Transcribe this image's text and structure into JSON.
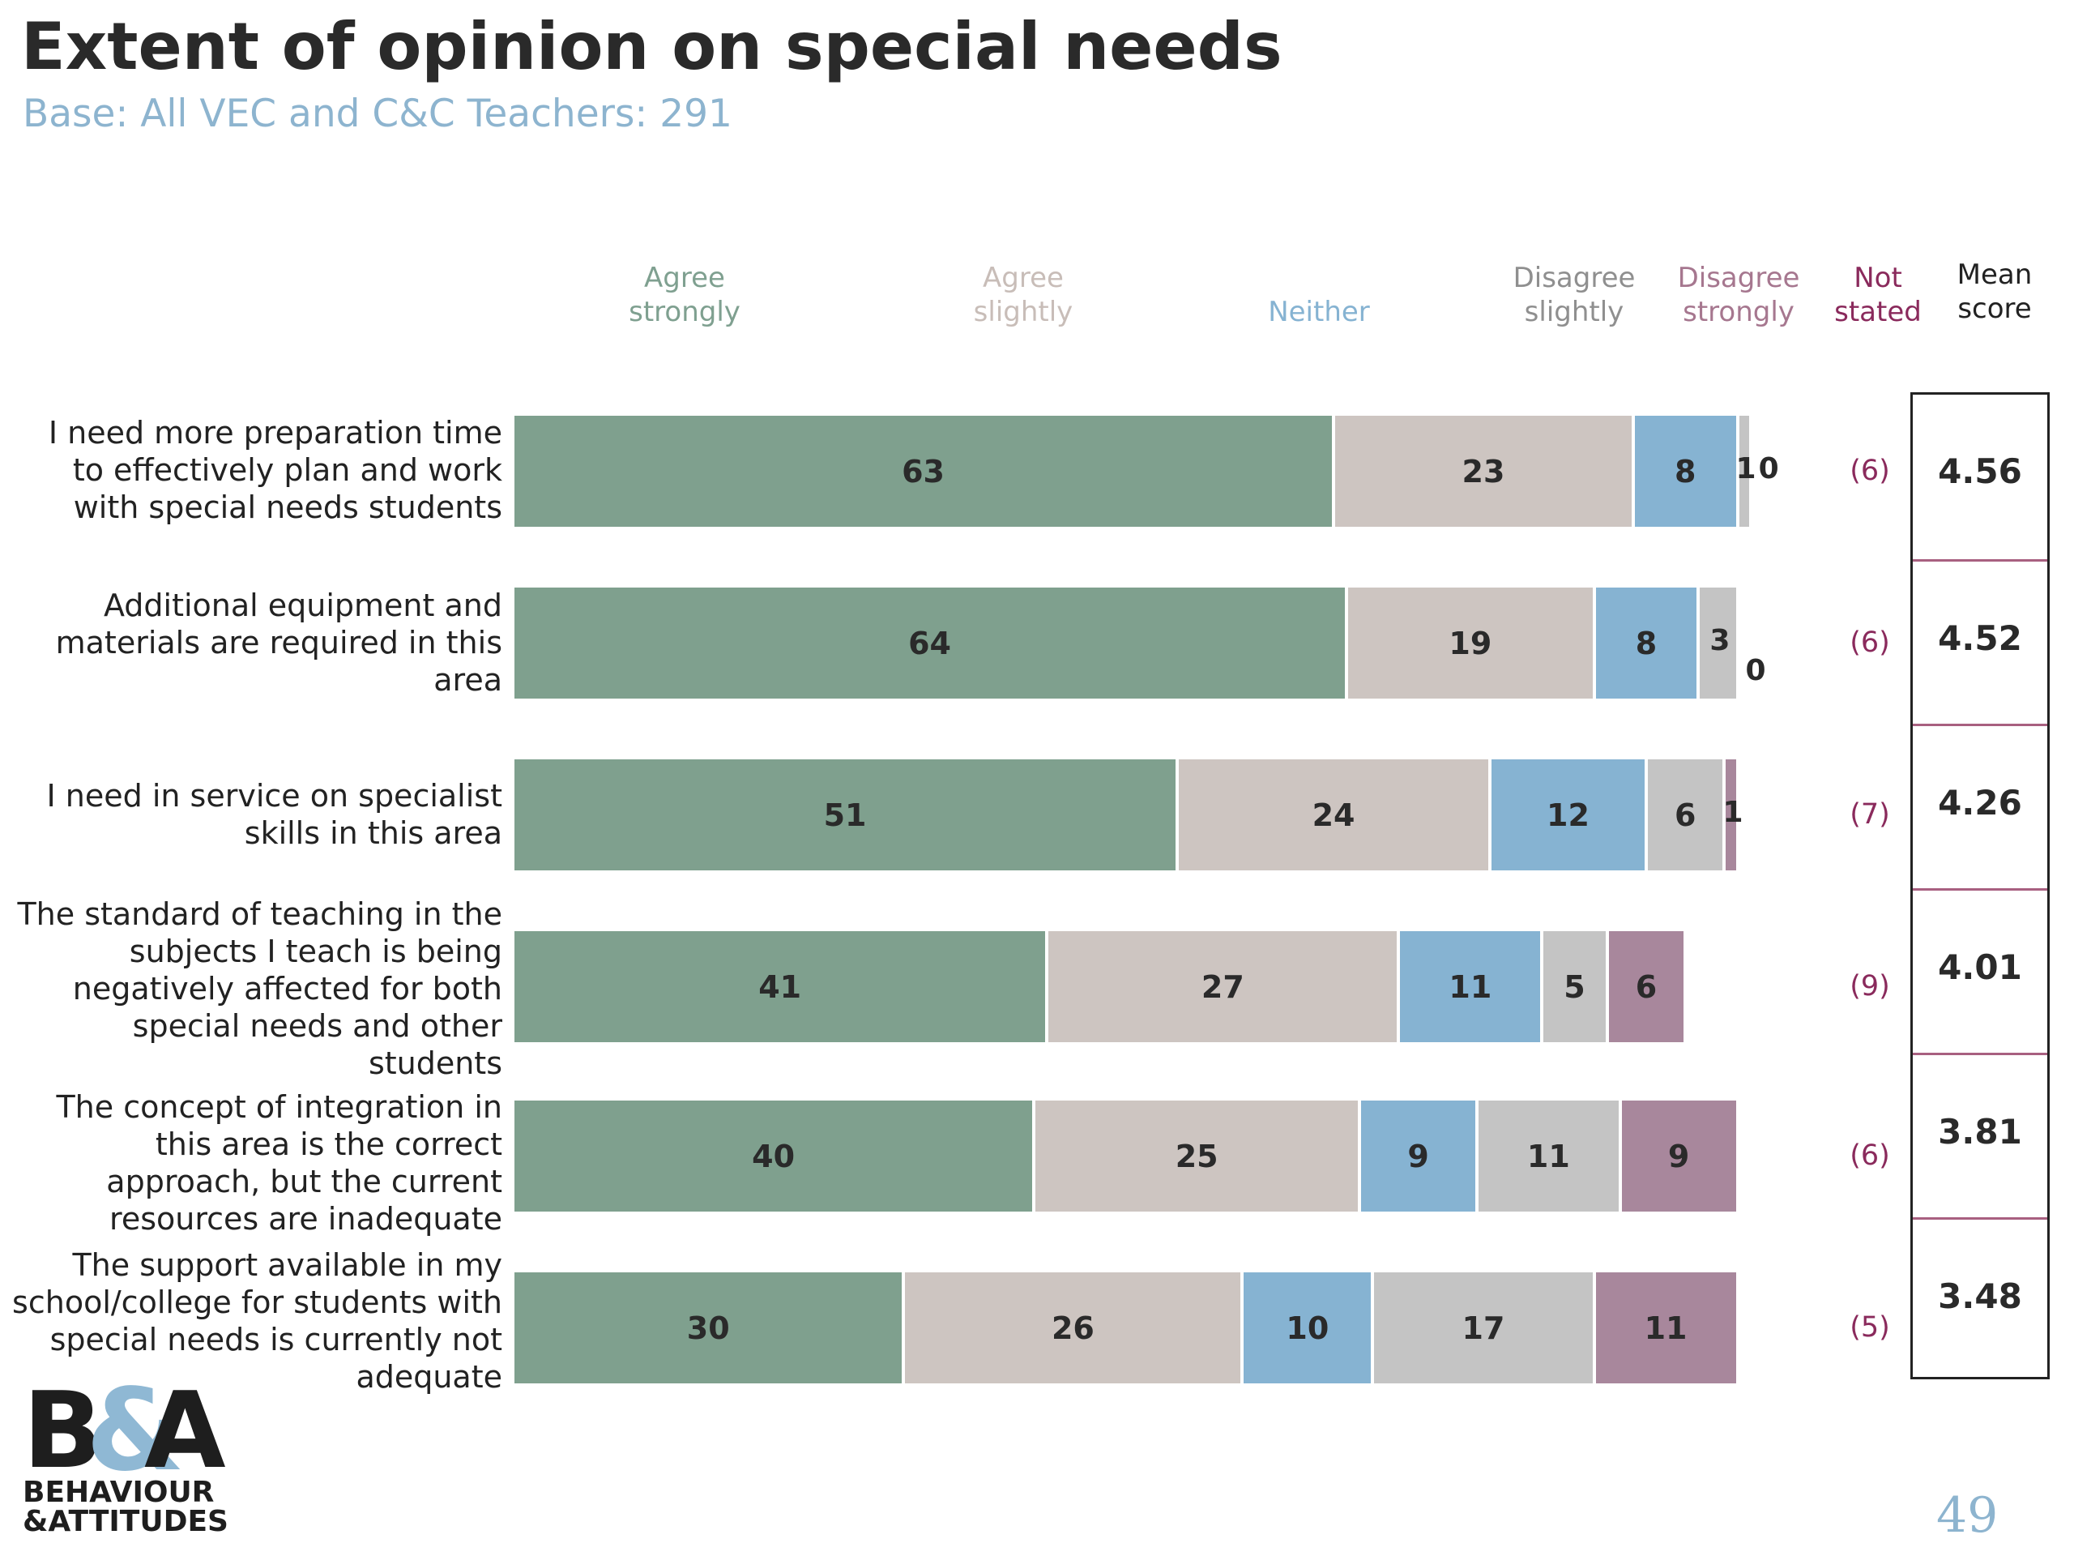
{
  "title": "Extent of opinion on special needs",
  "subtitle": "Base: All VEC and C&C Teachers: 291",
  "page_number": "49",
  "logo": {
    "mark": "B&A",
    "line1": "BEHAVIOUR",
    "line2": "&ATTITUDES"
  },
  "column_headers": [
    {
      "label": "Agree\nstrongly",
      "color": "#7fa090"
    },
    {
      "label": "Agree\nslightly",
      "color": "#c8bdb8"
    },
    {
      "label": "Neither",
      "color": "#86b3d2"
    },
    {
      "label": "Disagree\nslightly",
      "color": "#8f8f8f"
    },
    {
      "label": "Disagree\nstrongly",
      "color": "#a6778f"
    },
    {
      "label": "Not\nstated",
      "color": "#8a2a5c"
    },
    {
      "label": "Mean\nscore",
      "color": "#222222"
    }
  ],
  "chart_data": {
    "type": "bar",
    "orientation": "horizontal",
    "stacked": true,
    "categories": [
      "I need more preparation time to effectively plan and work with special needs students",
      "Additional equipment and materials are required in this area",
      "I need in service on specialist skills in this area",
      "The standard of teaching in the subjects I teach is being negatively affected for both special needs and other students",
      "The concept of integration in this area is the correct approach, but the current resources are inadequate",
      "The support available in my school/college for students with special needs is currently not adequate"
    ],
    "series": [
      {
        "name": "Agree strongly",
        "color": "#7fa08e",
        "values": [
          63,
          64,
          51,
          41,
          40,
          30
        ]
      },
      {
        "name": "Agree slightly",
        "color": "#cdc5c1",
        "values": [
          23,
          19,
          24,
          27,
          25,
          26
        ]
      },
      {
        "name": "Neither",
        "color": "#86b3d2",
        "values": [
          8,
          8,
          12,
          11,
          9,
          10
        ]
      },
      {
        "name": "Disagree slightly",
        "color": "#c4c4c4",
        "values": [
          1,
          3,
          6,
          5,
          11,
          17
        ]
      },
      {
        "name": "Disagree strongly",
        "color": "#a8879c",
        "values": [
          0,
          0,
          1,
          6,
          9,
          11
        ]
      }
    ],
    "not_stated": [
      "(6)",
      "(6)",
      "(7)",
      "(9)",
      "(6)",
      "(5)"
    ],
    "mean_score": [
      "4.56",
      "4.52",
      "4.26",
      "4.01",
      "3.81",
      "3.48"
    ],
    "xlim": [
      0,
      100
    ],
    "grid": false,
    "legend": "top"
  }
}
